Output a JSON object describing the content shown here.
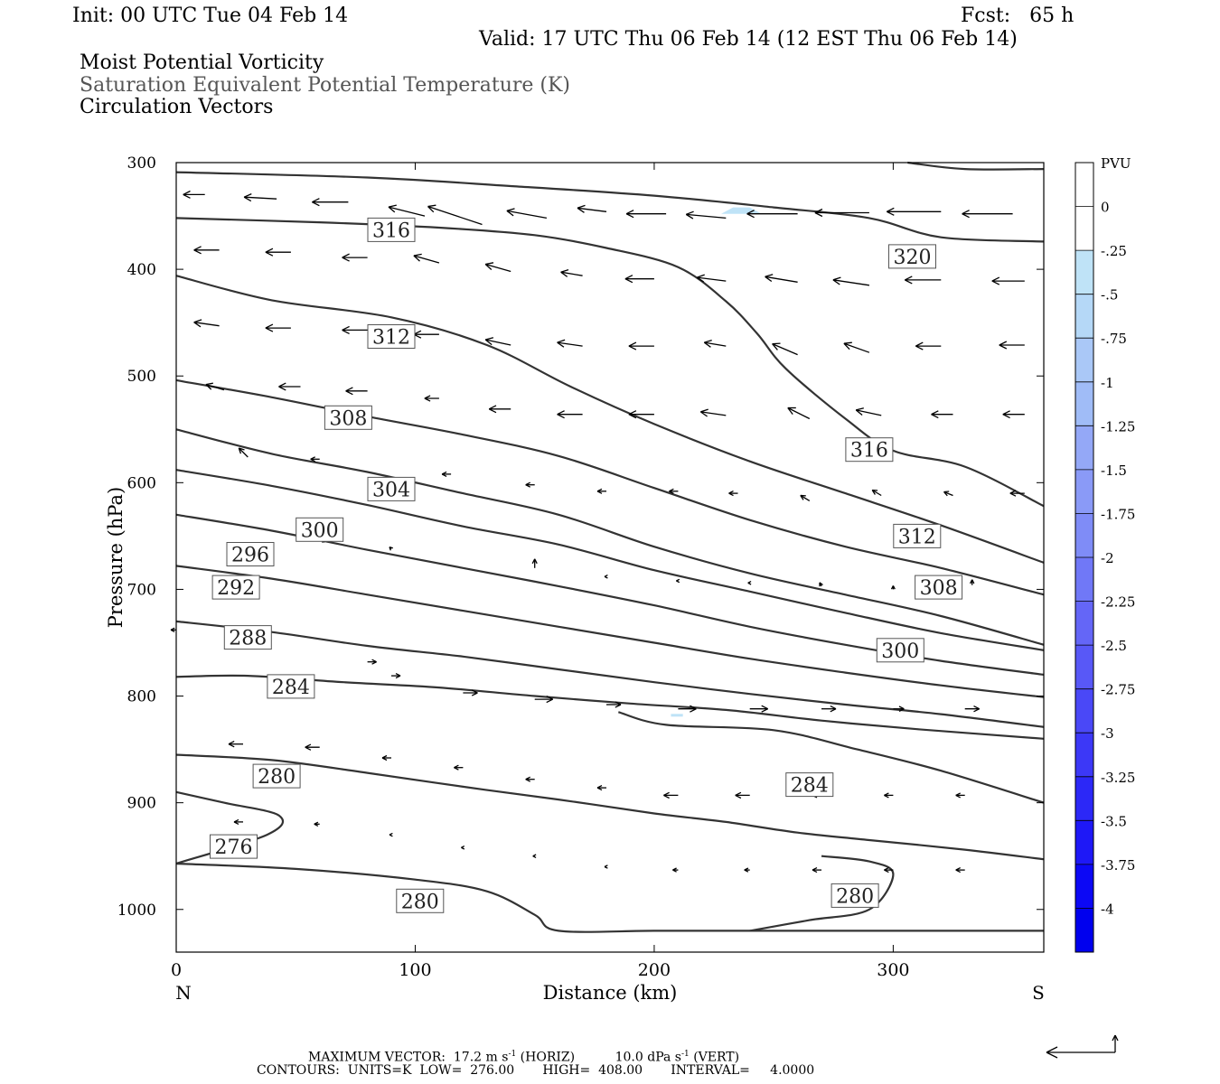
{
  "header": {
    "init": "Init: 00 UTC Tue 04 Feb 14",
    "fcst": "Fcst:   65 h",
    "valid": "Valid: 17 UTC Thu 06 Feb 14 (12 EST Thu 06 Feb 14)",
    "fields": [
      "Moist Potential Vorticity",
      "Saturation Equivalent Potential Temperature (K)",
      "Circulation Vectors"
    ]
  },
  "footer": {
    "max_vector_label": "MAXIMUM VECTOR:",
    "horiz": "17.2 m s",
    "horiz_unit": "(HORIZ)",
    "vert": "10.0 dPa s",
    "vert_unit": "(VERT)",
    "exponent": "-1",
    "contours": "CONTOURS:  UNITS=K  LOW=  276.00       HIGH=  408.00       INTERVAL=     4.0000"
  },
  "colors": {
    "contour": "#333333",
    "pv_light": "#bfe3f7",
    "frame": "#000000",
    "gray_text": "#555555"
  },
  "chart_data": {
    "type": "cross-section",
    "xlabel": "Distance (km)",
    "ylabel": "Pressure (hPa)",
    "xlim": [
      0,
      363
    ],
    "ylim": [
      1040,
      300
    ],
    "x_ticks": [
      0,
      100,
      200,
      300
    ],
    "y_ticks": [
      300,
      400,
      500,
      600,
      700,
      800,
      900,
      1000
    ],
    "end_labels": {
      "left": "N",
      "right": "S"
    },
    "colorbar": {
      "title": "PVU",
      "labels": [
        "0",
        "-.25",
        "-.5",
        "-.75",
        "-1",
        "-1.25",
        "-1.5",
        "-1.75",
        "-2",
        "-2.25",
        "-2.5",
        "-2.75",
        "-3",
        "-3.25",
        "-3.5",
        "-3.75",
        "-4"
      ],
      "colors": [
        "#ffffff",
        "#ffffff",
        "#bfe3f7",
        "#b5d8f7",
        "#aac8f7",
        "#a0bcf7",
        "#94a8f7",
        "#8a9af7",
        "#7f8cf7",
        "#7078f7",
        "#6466f7",
        "#5858f7",
        "#4a48f7",
        "#3c38f7",
        "#2c28f7",
        "#1e18f7",
        "#0c08f5",
        "#0000ee"
      ]
    },
    "theta_e_contours": [
      {
        "level": 320,
        "points": [
          [
            0,
            309
          ],
          [
            80,
            314
          ],
          [
            140,
            322
          ],
          [
            200,
            331
          ],
          [
            250,
            342
          ],
          [
            290,
            352
          ],
          [
            320,
            370
          ],
          [
            363,
            374
          ]
        ]
      },
      {
        "level": 320,
        "points": [
          [
            306,
            300
          ],
          [
            330,
            306
          ],
          [
            363,
            306
          ]
        ]
      },
      {
        "level": 316,
        "points": [
          [
            0,
            352
          ],
          [
            60,
            356
          ],
          [
            110,
            361
          ],
          [
            150,
            368
          ],
          [
            180,
            380
          ],
          [
            210,
            398
          ],
          [
            230,
            430
          ],
          [
            243,
            460
          ],
          [
            255,
            493
          ],
          [
            280,
            540
          ],
          [
            300,
            570
          ],
          [
            330,
            585
          ],
          [
            363,
            622
          ]
        ]
      },
      {
        "level": 312,
        "points": [
          [
            0,
            406
          ],
          [
            40,
            429
          ],
          [
            90,
            445
          ],
          [
            130,
            471
          ],
          [
            165,
            510
          ],
          [
            200,
            545
          ],
          [
            240,
            580
          ],
          [
            280,
            610
          ],
          [
            320,
            640
          ],
          [
            363,
            675
          ]
        ]
      },
      {
        "level": 308,
        "points": [
          [
            0,
            504
          ],
          [
            40,
            520
          ],
          [
            80,
            538
          ],
          [
            120,
            555
          ],
          [
            160,
            575
          ],
          [
            200,
            605
          ],
          [
            240,
            635
          ],
          [
            280,
            660
          ],
          [
            320,
            680
          ],
          [
            363,
            705
          ]
        ]
      },
      {
        "level": 304,
        "points": [
          [
            0,
            550
          ],
          [
            40,
            573
          ],
          [
            80,
            590
          ],
          [
            120,
            610
          ],
          [
            160,
            630
          ],
          [
            200,
            660
          ],
          [
            240,
            685
          ],
          [
            280,
            705
          ],
          [
            320,
            725
          ],
          [
            363,
            752
          ]
        ]
      },
      {
        "level": 300,
        "points": [
          [
            0,
            588
          ],
          [
            40,
            603
          ],
          [
            80,
            621
          ],
          [
            120,
            641
          ],
          [
            160,
            658
          ],
          [
            200,
            682
          ],
          [
            240,
            702
          ],
          [
            280,
            722
          ],
          [
            320,
            741
          ],
          [
            363,
            757
          ]
        ]
      },
      {
        "level": 296,
        "points": [
          [
            0,
            630
          ],
          [
            40,
            645
          ],
          [
            80,
            663
          ],
          [
            120,
            680
          ],
          [
            160,
            697
          ],
          [
            200,
            715
          ],
          [
            240,
            735
          ],
          [
            280,
            752
          ],
          [
            320,
            767
          ],
          [
            363,
            780
          ]
        ]
      },
      {
        "level": 292,
        "points": [
          [
            0,
            678
          ],
          [
            40,
            690
          ],
          [
            80,
            705
          ],
          [
            120,
            720
          ],
          [
            160,
            735
          ],
          [
            200,
            750
          ],
          [
            240,
            765
          ],
          [
            280,
            778
          ],
          [
            320,
            790
          ],
          [
            363,
            801
          ]
        ]
      },
      {
        "level": 288,
        "points": [
          [
            0,
            730
          ],
          [
            40,
            740
          ],
          [
            80,
            753
          ],
          [
            120,
            763
          ],
          [
            160,
            775
          ],
          [
            200,
            787
          ],
          [
            240,
            798
          ],
          [
            280,
            808
          ],
          [
            320,
            817
          ],
          [
            363,
            829
          ]
        ]
      },
      {
        "level": 284,
        "points": [
          [
            0,
            782
          ],
          [
            30,
            781
          ],
          [
            70,
            787
          ],
          [
            110,
            792
          ],
          [
            150,
            800
          ],
          [
            190,
            807
          ],
          [
            230,
            813
          ],
          [
            270,
            823
          ],
          [
            310,
            831
          ],
          [
            363,
            840
          ]
        ]
      },
      {
        "level": 280,
        "points": [
          [
            0,
            855
          ],
          [
            40,
            860
          ],
          [
            80,
            872
          ],
          [
            120,
            885
          ],
          [
            160,
            897
          ],
          [
            200,
            910
          ],
          [
            230,
            918
          ],
          [
            260,
            928
          ],
          [
            290,
            935
          ],
          [
            330,
            944
          ],
          [
            363,
            953
          ]
        ]
      },
      {
        "level": 284,
        "points": [
          [
            185,
            815
          ],
          [
            205,
            827
          ],
          [
            250,
            832
          ],
          [
            285,
            850
          ],
          [
            320,
            870
          ],
          [
            363,
            900
          ]
        ]
      },
      {
        "level": 276,
        "points": [
          [
            0,
            890
          ],
          [
            20,
            900
          ],
          [
            43,
            912
          ],
          [
            38,
            930
          ],
          [
            0,
            957
          ]
        ]
      },
      {
        "level": 280,
        "points": [
          [
            0,
            957
          ],
          [
            50,
            962
          ],
          [
            100,
            972
          ],
          [
            130,
            983
          ],
          [
            150,
            1005
          ],
          [
            160,
            1020
          ],
          [
            200,
            1020
          ],
          [
            240,
            1020
          ],
          [
            280,
            1020
          ],
          [
            320,
            1020
          ],
          [
            363,
            1020
          ]
        ]
      },
      {
        "level": 280,
        "points": [
          [
            240,
            1020
          ],
          [
            265,
            1010
          ],
          [
            290,
            1000
          ],
          [
            300,
            967
          ],
          [
            290,
            955
          ],
          [
            270,
            950
          ]
        ]
      }
    ],
    "contour_labels": [
      {
        "text": "316",
        "x": 90,
        "y": 363
      },
      {
        "text": "320",
        "x": 308,
        "y": 388
      },
      {
        "text": "312",
        "x": 90,
        "y": 463
      },
      {
        "text": "316",
        "x": 290,
        "y": 569
      },
      {
        "text": "308",
        "x": 72,
        "y": 539
      },
      {
        "text": "304",
        "x": 90,
        "y": 606
      },
      {
        "text": "300",
        "x": 60,
        "y": 644
      },
      {
        "text": "312",
        "x": 310,
        "y": 650
      },
      {
        "text": "296",
        "x": 31,
        "y": 667
      },
      {
        "text": "292",
        "x": 25,
        "y": 698
      },
      {
        "text": "308",
        "x": 319,
        "y": 698
      },
      {
        "text": "288",
        "x": 30,
        "y": 745
      },
      {
        "text": "300",
        "x": 303,
        "y": 757
      },
      {
        "text": "284",
        "x": 48,
        "y": 791
      },
      {
        "text": "280",
        "x": 42,
        "y": 875
      },
      {
        "text": "284",
        "x": 265,
        "y": 883
      },
      {
        "text": "276",
        "x": 24,
        "y": 941
      },
      {
        "text": "280",
        "x": 102,
        "y": 992
      },
      {
        "text": "280",
        "x": 284,
        "y": 987
      }
    ],
    "pv_patches": [
      {
        "value": -0.25,
        "points": [
          [
            228,
            348
          ],
          [
            233,
            342
          ],
          [
            240,
            342
          ],
          [
            245,
            348
          ]
        ]
      },
      {
        "value": -0.25,
        "points": [
          [
            207,
            818
          ],
          [
            212,
            818
          ]
        ]
      }
    ],
    "vectors": [
      [
        12,
        330,
        -12,
        0
      ],
      [
        42,
        334,
        -18,
        -1
      ],
      [
        72,
        337,
        -20,
        0
      ],
      [
        104,
        350,
        -20,
        -5
      ],
      [
        128,
        358,
        -30,
        -10
      ],
      [
        155,
        352,
        -22,
        -4
      ],
      [
        180,
        346,
        -16,
        -2
      ],
      [
        205,
        348,
        -22,
        0
      ],
      [
        230,
        352,
        -22,
        -2
      ],
      [
        260,
        348,
        -28,
        0
      ],
      [
        290,
        347,
        -30,
        0
      ],
      [
        320,
        346,
        -30,
        0
      ],
      [
        350,
        348,
        -28,
        0
      ],
      [
        18,
        382,
        -14,
        0
      ],
      [
        48,
        384,
        -14,
        0
      ],
      [
        80,
        389,
        -14,
        0
      ],
      [
        110,
        394,
        -14,
        -4
      ],
      [
        140,
        402,
        -14,
        -4
      ],
      [
        170,
        406,
        -12,
        -2
      ],
      [
        200,
        409,
        -16,
        0
      ],
      [
        230,
        411,
        -16,
        -2
      ],
      [
        260,
        412,
        -18,
        -3
      ],
      [
        290,
        415,
        -20,
        -3
      ],
      [
        320,
        410,
        -20,
        0
      ],
      [
        355,
        411,
        -18,
        0
      ],
      [
        18,
        453,
        -14,
        -2
      ],
      [
        48,
        455,
        -14,
        0
      ],
      [
        80,
        457,
        -14,
        0
      ],
      [
        110,
        461,
        -14,
        0
      ],
      [
        140,
        471,
        -14,
        -3
      ],
      [
        170,
        472,
        -14,
        -2
      ],
      [
        200,
        472,
        -14,
        0
      ],
      [
        230,
        472,
        -12,
        -2
      ],
      [
        260,
        480,
        -14,
        -6
      ],
      [
        290,
        478,
        -14,
        -5
      ],
      [
        320,
        472,
        -14,
        0
      ],
      [
        355,
        471,
        -14,
        0
      ],
      [
        20,
        513,
        -10,
        -3
      ],
      [
        52,
        510,
        -12,
        0
      ],
      [
        80,
        514,
        -12,
        0
      ],
      [
        110,
        521,
        -8,
        0
      ],
      [
        140,
        531,
        -12,
        0
      ],
      [
        170,
        536,
        -14,
        0
      ],
      [
        200,
        536,
        -14,
        0
      ],
      [
        230,
        537,
        -14,
        -2
      ],
      [
        265,
        540,
        -12,
        -6
      ],
      [
        295,
        537,
        -14,
        -3
      ],
      [
        325,
        536,
        -12,
        0
      ],
      [
        355,
        536,
        -12,
        0
      ],
      [
        30,
        576,
        -5,
        -5
      ],
      [
        60,
        578,
        -5,
        0
      ],
      [
        115,
        592,
        -5,
        0
      ],
      [
        150,
        602,
        -5,
        0
      ],
      [
        180,
        608,
        -5,
        0
      ],
      [
        210,
        608,
        -5,
        0
      ],
      [
        235,
        610,
        -5,
        0
      ],
      [
        265,
        617,
        -5,
        -3
      ],
      [
        295,
        612,
        -5,
        -3
      ],
      [
        325,
        612,
        -5,
        -2
      ],
      [
        355,
        610,
        -8,
        0
      ],
      [
        62,
        656,
        -1,
        -2
      ],
      [
        90,
        662,
        -1,
        -1
      ],
      [
        150,
        680,
        0,
        -5
      ],
      [
        180,
        688,
        -1,
        0
      ],
      [
        210,
        692,
        -1,
        0
      ],
      [
        240,
        694,
        -1,
        0
      ],
      [
        270,
        697,
        -1,
        -2
      ],
      [
        300,
        700,
        0,
        -2
      ],
      [
        333,
        696,
        0,
        -3
      ],
      [
        0,
        738,
        -3,
        0
      ],
      [
        80,
        768,
        5,
        0
      ],
      [
        90,
        781,
        5,
        0
      ],
      [
        120,
        797,
        8,
        0
      ],
      [
        150,
        803,
        10,
        0
      ],
      [
        180,
        808,
        8,
        0
      ],
      [
        210,
        812,
        10,
        0
      ],
      [
        240,
        812,
        10,
        0
      ],
      [
        270,
        812,
        8,
        0
      ],
      [
        300,
        812,
        6,
        0
      ],
      [
        330,
        812,
        8,
        0
      ],
      [
        28,
        845,
        -8,
        0
      ],
      [
        60,
        848,
        -8,
        0
      ],
      [
        90,
        858,
        -5,
        0
      ],
      [
        120,
        867,
        -5,
        0
      ],
      [
        150,
        878,
        -5,
        0
      ],
      [
        180,
        886,
        -5,
        0
      ],
      [
        210,
        893,
        -8,
        0
      ],
      [
        240,
        893,
        -8,
        0
      ],
      [
        270,
        893,
        -5,
        0
      ],
      [
        300,
        893,
        -5,
        0
      ],
      [
        330,
        893,
        -5,
        0
      ],
      [
        28,
        918,
        -5,
        0
      ],
      [
        60,
        920,
        -3,
        0
      ],
      [
        90,
        930,
        -1,
        0
      ],
      [
        120,
        942,
        -1,
        0
      ],
      [
        150,
        950,
        -1,
        0
      ],
      [
        180,
        960,
        -1,
        0
      ],
      [
        210,
        963,
        -3,
        0
      ],
      [
        240,
        963,
        -3,
        0
      ],
      [
        270,
        963,
        -5,
        0
      ],
      [
        300,
        963,
        -5,
        0
      ],
      [
        330,
        963,
        -5,
        0
      ]
    ]
  }
}
